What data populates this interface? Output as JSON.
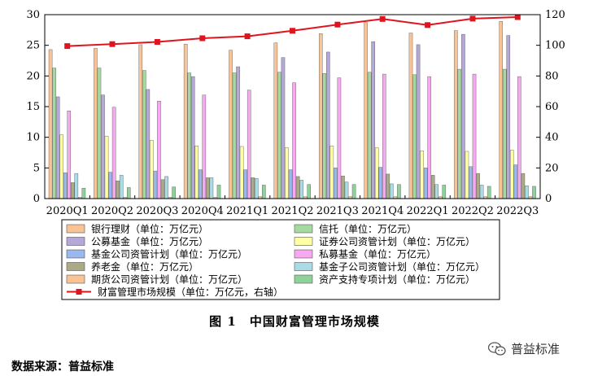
{
  "chart_data": {
    "type": "bar",
    "categories": [
      "2020Q1",
      "2020Q2",
      "2020Q3",
      "2020Q4",
      "2021Q1",
      "2021Q2",
      "2021Q3",
      "2021Q4",
      "2022Q1",
      "2022Q2",
      "2022Q3"
    ],
    "ylim": [
      0,
      30
    ],
    "y2lim": [
      0,
      120
    ],
    "yticks": [
      0,
      5,
      10,
      15,
      20,
      25,
      30
    ],
    "y2ticks": [
      0,
      20,
      40,
      60,
      80,
      100,
      120
    ],
    "legend_position": "bottom",
    "series": [
      {
        "name": "银行理财（单位：万亿元）",
        "color": "#F8C496",
        "values": [
          24.3,
          24.5,
          25.1,
          25.2,
          24.2,
          25.4,
          26.9,
          28.7,
          27.0,
          27.4,
          28.9
        ]
      },
      {
        "name": "信托（单位：万亿元）",
        "color": "#A6D9A0",
        "values": [
          21.3,
          21.3,
          20.9,
          20.5,
          20.5,
          20.6,
          20.4,
          20.6,
          20.2,
          21.1,
          21.1
        ]
      },
      {
        "name": "公募基金（单位：万亿元）",
        "color": "#B4A8D6",
        "values": [
          16.6,
          16.9,
          17.8,
          19.9,
          21.5,
          23.0,
          23.9,
          25.6,
          25.1,
          26.8,
          26.6
        ]
      },
      {
        "name": "证券公司资管计划（单位：万亿元）",
        "color": "#FFFFA6",
        "values": [
          10.4,
          10.2,
          9.5,
          8.6,
          8.5,
          8.3,
          8.6,
          8.3,
          7.8,
          7.7,
          7.9
        ]
      },
      {
        "name": "基金公司资管计划（单位：万亿元）",
        "color": "#9BB8EE",
        "values": [
          4.2,
          4.3,
          4.5,
          4.7,
          4.7,
          4.7,
          5.0,
          5.1,
          5.0,
          5.2,
          5.5
        ]
      },
      {
        "name": "私募基金（单位：万亿元）",
        "color": "#F7A8F0",
        "values": [
          14.3,
          14.9,
          15.9,
          16.9,
          17.7,
          18.9,
          19.7,
          20.3,
          19.9,
          20.3,
          19.9
        ]
      },
      {
        "name": "养老金（单位：万亿元）",
        "color": "#ABAA87",
        "values": [
          2.6,
          2.9,
          3.1,
          3.4,
          3.4,
          3.6,
          3.7,
          4.0,
          3.8,
          4.1,
          4.1
        ]
      },
      {
        "name": "基金子公司资管计划（单位：万亿元）",
        "color": "#A9DCE6",
        "values": [
          4.1,
          3.8,
          3.6,
          3.4,
          3.3,
          3.0,
          2.7,
          2.4,
          2.3,
          2.2,
          2.1
        ]
      },
      {
        "name": "期货公司资管计划（单位：万亿元）",
        "color": "#F8C496",
        "values": [
          0.2,
          0.2,
          0.2,
          0.2,
          0.3,
          0.3,
          0.3,
          0.3,
          0.3,
          0.3,
          0.3
        ]
      },
      {
        "name": "资产支持专项计划（单位：万亿元）",
        "color": "#8FD19A",
        "values": [
          1.7,
          1.8,
          1.9,
          2.2,
          2.2,
          2.3,
          2.3,
          2.3,
          2.2,
          2.0,
          2.0
        ]
      }
    ],
    "line_series": {
      "name": "财富管理市场规模（单位：万亿元，右轴）",
      "color": "#E0141E",
      "axis": "right",
      "values": [
        99.5,
        100.8,
        102.2,
        104.6,
        105.9,
        109.5,
        113.5,
        117.2,
        113.2,
        117.4,
        118.4
      ]
    }
  },
  "figure": {
    "caption": "图 1　中国财富管理市场规模",
    "source": "数据来源：普益标准",
    "watermark": "普益标准"
  }
}
